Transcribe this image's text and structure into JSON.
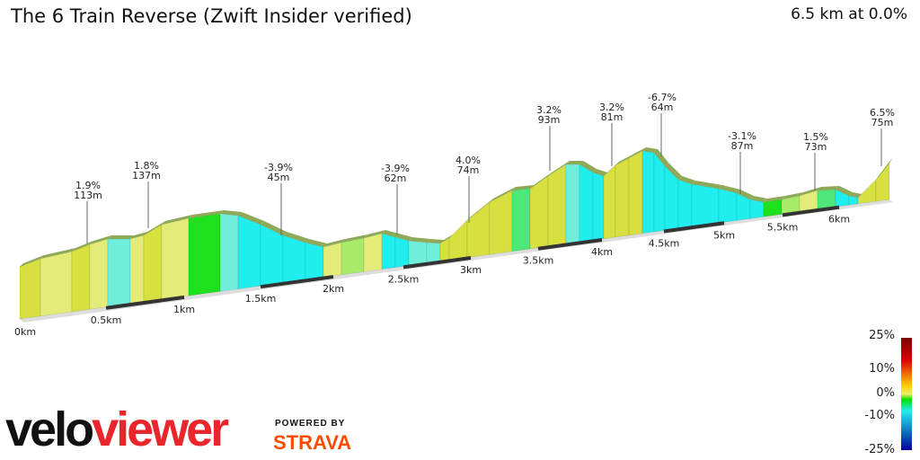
{
  "header": {
    "title": "The 6 Train Reverse (Zwift Insider verified)",
    "summary": "6.5 km at 0.0%"
  },
  "chart_data": {
    "type": "area",
    "title": "The 6 Train Reverse (Zwift Insider verified)",
    "x_unit": "km",
    "xlim": [
      0,
      6.5
    ],
    "x_ticks": [
      "0km",
      "0.5km",
      "1km",
      "1.5km",
      "2km",
      "2.5km",
      "3km",
      "3.5km",
      "4km",
      "4.5km",
      "5km",
      "5.5km",
      "6km"
    ],
    "annotations": [
      {
        "km": 0.6,
        "grade": "1.9%",
        "length": "113m"
      },
      {
        "km": 1.0,
        "grade": "1.8%",
        "length": "137m"
      },
      {
        "km": 2.3,
        "grade": "-3.9%",
        "length": "45m"
      },
      {
        "km": 3.0,
        "grade": "-3.9%",
        "length": "62m"
      },
      {
        "km": 3.0,
        "grade": "4.0%",
        "length": "74m"
      },
      {
        "km": 3.6,
        "grade": "3.2%",
        "length": "93m"
      },
      {
        "km": 4.1,
        "grade": "3.2%",
        "length": "81m"
      },
      {
        "km": 4.5,
        "grade": "-6.7%",
        "length": "64m"
      },
      {
        "km": 5.2,
        "grade": "-3.1%",
        "length": "87m"
      },
      {
        "km": 5.8,
        "grade": "1.5%",
        "length": "73m"
      },
      {
        "km": 6.4,
        "grade": "6.5%",
        "length": "75m"
      }
    ],
    "colorbar": {
      "labels": [
        "25%",
        "10%",
        "0%",
        "-10%",
        "-25%"
      ],
      "colors": [
        "#7a0000",
        "#e00000",
        "#ffd000",
        "#f0f060",
        "#00e000",
        "#20f0f0",
        "#0000a0"
      ]
    }
  },
  "branding": {
    "logo_a": "velo",
    "logo_b": "viewer",
    "powered_by": "POWERED BY",
    "strava": "STRAVA"
  }
}
